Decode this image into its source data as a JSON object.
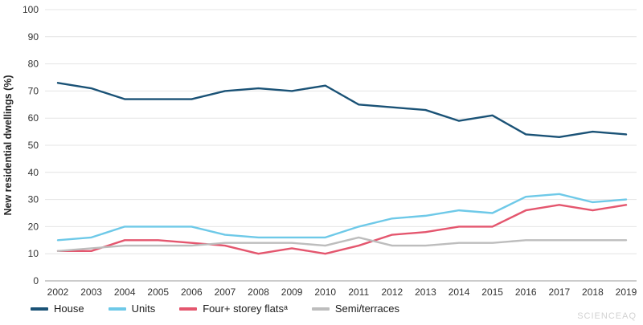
{
  "watermark": "SCIENCEAQ",
  "chart_data": {
    "type": "line",
    "title": "",
    "xlabel": "",
    "ylabel": "New residential dwellings (%)",
    "ylim": [
      0,
      100
    ],
    "ytick_step": 10,
    "grid": true,
    "legend_position": "bottom",
    "categories": [
      "2002",
      "2003",
      "2004",
      "2005",
      "2006",
      "2007",
      "2008",
      "2009",
      "2010",
      "2011",
      "2012",
      "2013",
      "2014",
      "2015",
      "2016",
      "2017",
      "2018",
      "2019"
    ],
    "series": [
      {
        "name": "House",
        "color": "#1a5276",
        "values": [
          73,
          71,
          67,
          67,
          67,
          70,
          71,
          70,
          72,
          65,
          64,
          63,
          59,
          61,
          54,
          53,
          55,
          54
        ]
      },
      {
        "name": "Units",
        "color": "#6ec9e8",
        "values": [
          15,
          16,
          20,
          20,
          20,
          17,
          16,
          16,
          16,
          20,
          23,
          24,
          26,
          25,
          31,
          32,
          29,
          30
        ]
      },
      {
        "name": "Four+ storey flatsᵃ",
        "color": "#e4566e",
        "values": [
          11,
          11,
          15,
          15,
          14,
          13,
          10,
          12,
          10,
          13,
          17,
          18,
          20,
          20,
          26,
          28,
          26,
          28
        ]
      },
      {
        "name": "Semi/terraces",
        "color": "#bdbdbd",
        "values": [
          11,
          12,
          13,
          13,
          13,
          14,
          14,
          14,
          13,
          16,
          13,
          13,
          14,
          14,
          15,
          15,
          15,
          15
        ]
      }
    ]
  }
}
